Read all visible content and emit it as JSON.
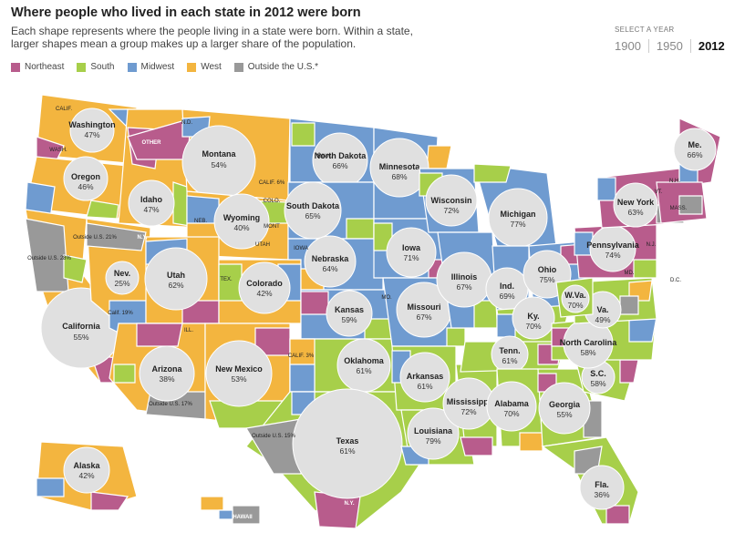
{
  "title": "Where people who lived in each state in 2012 were born",
  "subtitle": "Each shape represents where the people living in a state were born. Within a state, larger shapes mean a group makes up a larger share of the population.",
  "legend": [
    {
      "label": "Northeast",
      "color": "#b85c8c"
    },
    {
      "label": "South",
      "color": "#a7cf4a"
    },
    {
      "label": "Midwest",
      "color": "#6f9bd0"
    },
    {
      "label": "West",
      "color": "#f3b53f"
    },
    {
      "label": "Outside the U.S.*",
      "color": "#999999"
    }
  ],
  "year_selector": {
    "label": "SELECT A YEAR",
    "years": [
      "1900",
      "1950",
      "2012"
    ],
    "selected": "2012"
  },
  "states": [
    {
      "name": "Washington",
      "pct": "47%",
      "region": "West"
    },
    {
      "name": "Oregon",
      "pct": "46%",
      "region": "West"
    },
    {
      "name": "California",
      "pct": "55%",
      "region": "West"
    },
    {
      "name": "Idaho",
      "pct": "47%",
      "region": "West"
    },
    {
      "name": "Nev.",
      "pct": "25%",
      "region": "West"
    },
    {
      "name": "Montana",
      "pct": "54%",
      "region": "West"
    },
    {
      "name": "Wyoming",
      "pct": "40%",
      "region": "West"
    },
    {
      "name": "Utah",
      "pct": "62%",
      "region": "West"
    },
    {
      "name": "Colorado",
      "pct": "42%",
      "region": "West"
    },
    {
      "name": "Arizona",
      "pct": "38%",
      "region": "West"
    },
    {
      "name": "New Mexico",
      "pct": "53%",
      "region": "West"
    },
    {
      "name": "North Dakota",
      "pct": "66%",
      "region": "Midwest"
    },
    {
      "name": "South Dakota",
      "pct": "65%",
      "region": "Midwest"
    },
    {
      "name": "Nebraska",
      "pct": "64%",
      "region": "Midwest"
    },
    {
      "name": "Kansas",
      "pct": "59%",
      "region": "Midwest"
    },
    {
      "name": "Oklahoma",
      "pct": "61%",
      "region": "South"
    },
    {
      "name": "Texas",
      "pct": "61%",
      "region": "South"
    },
    {
      "name": "Minnesota",
      "pct": "68%",
      "region": "Midwest"
    },
    {
      "name": "Iowa",
      "pct": "71%",
      "region": "Midwest"
    },
    {
      "name": "Missouri",
      "pct": "67%",
      "region": "Midwest"
    },
    {
      "name": "Arkansas",
      "pct": "61%",
      "region": "South"
    },
    {
      "name": "Louisiana",
      "pct": "79%",
      "region": "South"
    },
    {
      "name": "Wisconsin",
      "pct": "72%",
      "region": "Midwest"
    },
    {
      "name": "Illinois",
      "pct": "67%",
      "region": "Midwest"
    },
    {
      "name": "Mississippi",
      "pct": "72%",
      "region": "South"
    },
    {
      "name": "Michigan",
      "pct": "77%",
      "region": "Midwest"
    },
    {
      "name": "Ind.",
      "pct": "69%",
      "region": "Midwest"
    },
    {
      "name": "Ohio",
      "pct": "75%",
      "region": "Midwest"
    },
    {
      "name": "Ky.",
      "pct": "70%",
      "region": "South"
    },
    {
      "name": "Tenn.",
      "pct": "61%",
      "region": "South"
    },
    {
      "name": "Alabama",
      "pct": "70%",
      "region": "South"
    },
    {
      "name": "Georgia",
      "pct": "55%",
      "region": "South"
    },
    {
      "name": "Fla.",
      "pct": "36%",
      "region": "South"
    },
    {
      "name": "S.C.",
      "pct": "58%",
      "region": "South"
    },
    {
      "name": "North Carolina",
      "pct": "58%",
      "region": "South"
    },
    {
      "name": "Va.",
      "pct": "49%",
      "region": "South"
    },
    {
      "name": "W.Va.",
      "pct": "70%",
      "region": "South"
    },
    {
      "name": "Pennsylvania",
      "pct": "74%",
      "region": "Northeast"
    },
    {
      "name": "New York",
      "pct": "63%",
      "region": "Northeast"
    },
    {
      "name": "Me.",
      "pct": "66%",
      "region": "Northeast"
    },
    {
      "name": "Alaska",
      "pct": "42%",
      "region": "West"
    },
    {
      "name": "HAWAII",
      "pct": "",
      "region": "West"
    }
  ],
  "tags": [
    "CALIF.",
    "WASH.",
    "OTHER",
    "N.D.",
    "CALIF. 6%",
    "COLO.",
    "MONT",
    "UTAH",
    "TEX.",
    "NEB.",
    "N.Y.",
    "Outside U.S. 21%",
    "Outside U.S. 28%",
    "Calif. 19%",
    "ILL.",
    "Outside U.S. 15%",
    "Outside U.S. 17%",
    "CALIF. 3%",
    "MINN.",
    "IOWA",
    "MO.",
    "MD.",
    "D.C.",
    "N.J.",
    "VT.",
    "N.H.",
    "MASS.",
    "N.Y."
  ]
}
